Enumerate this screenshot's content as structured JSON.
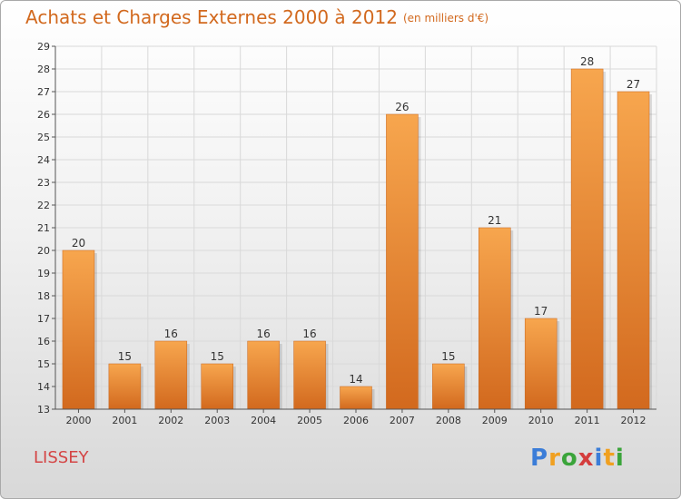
{
  "chart_data": {
    "type": "bar",
    "title": "Achats et Charges Externes 2000 à 2012",
    "unit_label": "(en milliers d'€)",
    "categories": [
      "2000",
      "2001",
      "2002",
      "2003",
      "2004",
      "2005",
      "2006",
      "2007",
      "2008",
      "2009",
      "2010",
      "2011",
      "2012"
    ],
    "values": [
      20,
      15,
      16,
      15,
      16,
      16,
      14,
      26,
      15,
      21,
      17,
      28,
      27
    ],
    "ylim": [
      13,
      29
    ],
    "yticks": [
      13,
      14,
      15,
      16,
      17,
      18,
      19,
      20,
      21,
      22,
      23,
      24,
      25,
      26,
      27,
      28,
      29
    ],
    "xlabel": "",
    "ylabel": "",
    "grid": true,
    "colors": {
      "bar_light": "#f7a64e",
      "bar_dark": "#d2691e",
      "title": "#d2691e"
    }
  },
  "city": "LISSEY",
  "brand": {
    "letters": [
      "P",
      "r",
      "o",
      "x",
      "i",
      "t",
      "i"
    ],
    "colors": [
      "#3b7dd8",
      "#f0a020",
      "#3aa43a",
      "#d43c3c",
      "#3b7dd8",
      "#f0a020",
      "#3aa43a"
    ]
  }
}
